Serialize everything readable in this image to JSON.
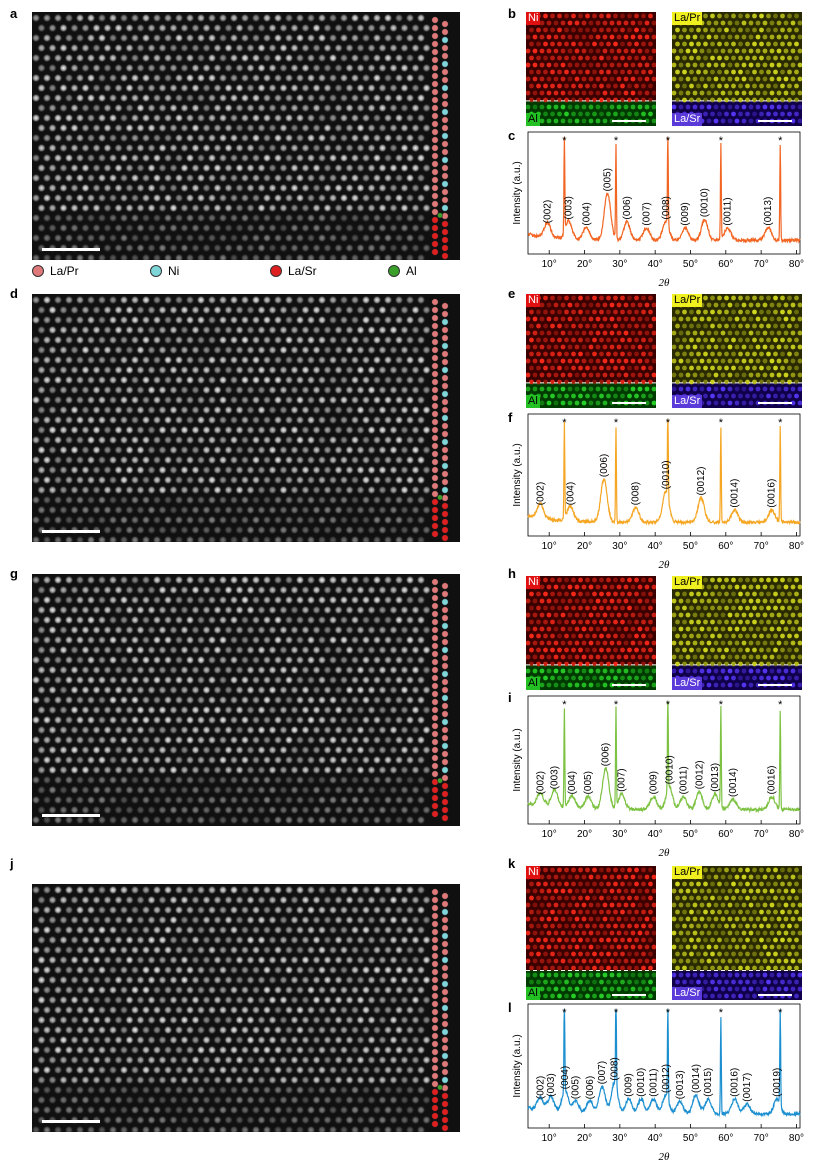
{
  "legend": {
    "items": [
      {
        "label": "La/Pr",
        "color": "#e07a7a"
      },
      {
        "label": "Ni",
        "color": "#7fd6d9"
      },
      {
        "label": "La/Sr",
        "color": "#e02020"
      },
      {
        "label": "Al",
        "color": "#3aa02a"
      }
    ]
  },
  "panels": [
    {
      "stem_label": "a",
      "eds_label": "b",
      "xrd_label": "c",
      "eds_left": {
        "top": "Ni",
        "bottom": "Al"
      },
      "eds_right": {
        "top": "La/Pr",
        "bottom": "La/Sr"
      }
    },
    {
      "stem_label": "d",
      "eds_label": "e",
      "xrd_label": "f",
      "eds_left": {
        "top": "Ni",
        "bottom": "Al"
      },
      "eds_right": {
        "top": "La/Pr",
        "bottom": "La/Sr"
      }
    },
    {
      "stem_label": "g",
      "eds_label": "h",
      "xrd_label": "i",
      "eds_left": {
        "top": "Ni",
        "bottom": "Al"
      },
      "eds_right": {
        "top": "La/Pr",
        "bottom": "La/Sr"
      }
    },
    {
      "stem_label": "j",
      "eds_label": "k",
      "xrd_label": "l",
      "eds_left": {
        "top": "Ni",
        "bottom": "Al"
      },
      "eds_right": {
        "top": "La/Pr",
        "bottom": "La/Sr"
      }
    }
  ],
  "chart_data": [
    {
      "type": "line",
      "panel": "c",
      "xlabel": "2θ",
      "ylabel": "Intensity (a.u.)",
      "xlim": [
        4,
        81
      ],
      "xticks": [
        "10°",
        "20°",
        "30°",
        "40°",
        "50°",
        "60°",
        "70°",
        "80°"
      ],
      "xtick_values": [
        10,
        20,
        30,
        40,
        50,
        60,
        70,
        80
      ],
      "color": "#f26522",
      "substrate_peaks": [
        14.3,
        28.9,
        43.6,
        58.6,
        75.4
      ],
      "peaks": [
        {
          "label": "(002)",
          "x": 9.5,
          "h": 0.12
        },
        {
          "label": "(003)",
          "x": 15.5,
          "h": 0.15
        },
        {
          "label": "(004)",
          "x": 20.5,
          "h": 0.1
        },
        {
          "label": "(005)",
          "x": 26.5,
          "h": 0.38
        },
        {
          "label": "(006)",
          "x": 32.0,
          "h": 0.15
        },
        {
          "label": "(007)",
          "x": 37.5,
          "h": 0.1
        },
        {
          "label": "(008)",
          "x": 43.0,
          "h": 0.15
        },
        {
          "label": "(009)",
          "x": 48.5,
          "h": 0.1
        },
        {
          "label": "(0010)",
          "x": 54.0,
          "h": 0.17
        },
        {
          "label": "(0011)",
          "x": 60.5,
          "h": 0.1
        },
        {
          "label": "(0013)",
          "x": 72.0,
          "h": 0.1
        }
      ]
    },
    {
      "type": "line",
      "panel": "f",
      "xlabel": "2θ",
      "ylabel": "Intensity (a.u.)",
      "xlim": [
        4,
        81
      ],
      "xticks": [
        "10°",
        "20°",
        "30°",
        "40°",
        "50°",
        "60°",
        "70°",
        "80°"
      ],
      "xtick_values": [
        10,
        20,
        30,
        40,
        50,
        60,
        70,
        80
      ],
      "color": "#f5a623",
      "substrate_peaks": [
        14.3,
        28.9,
        43.6,
        58.6,
        75.4
      ],
      "peaks": [
        {
          "label": "(002)",
          "x": 7.5,
          "h": 0.12
        },
        {
          "label": "(004)",
          "x": 16.0,
          "h": 0.12
        },
        {
          "label": "(006)",
          "x": 25.5,
          "h": 0.35
        },
        {
          "label": "(008)",
          "x": 34.5,
          "h": 0.12
        },
        {
          "label": "(0010)",
          "x": 43.0,
          "h": 0.25
        },
        {
          "label": "(0012)",
          "x": 53.0,
          "h": 0.2
        },
        {
          "label": "(0014)",
          "x": 62.5,
          "h": 0.1
        },
        {
          "label": "(0016)",
          "x": 73.0,
          "h": 0.1
        }
      ]
    },
    {
      "type": "line",
      "panel": "i",
      "xlabel": "2θ",
      "ylabel": "Intensity (a.u.)",
      "xlim": [
        4,
        81
      ],
      "xticks": [
        "10°",
        "20°",
        "30°",
        "40°",
        "50°",
        "60°",
        "70°",
        "80°"
      ],
      "xtick_values": [
        10,
        20,
        30,
        40,
        50,
        60,
        70,
        80
      ],
      "color": "#7dc242",
      "substrate_peaks": [
        14.3,
        28.9,
        43.6,
        58.6,
        75.4
      ],
      "peaks": [
        {
          "label": "(002)",
          "x": 7.5,
          "h": 0.1
        },
        {
          "label": "(003)",
          "x": 11.5,
          "h": 0.14
        },
        {
          "label": "(004)",
          "x": 16.5,
          "h": 0.1
        },
        {
          "label": "(005)",
          "x": 21.0,
          "h": 0.1
        },
        {
          "label": "(006)",
          "x": 26.0,
          "h": 0.32
        },
        {
          "label": "(007)",
          "x": 30.5,
          "h": 0.12
        },
        {
          "label": "(009)",
          "x": 39.5,
          "h": 0.1
        },
        {
          "label": "(0010)",
          "x": 44.0,
          "h": 0.18
        },
        {
          "label": "(0011)",
          "x": 48.0,
          "h": 0.1
        },
        {
          "label": "(0012)",
          "x": 52.5,
          "h": 0.14
        },
        {
          "label": "(0013)",
          "x": 57.0,
          "h": 0.12
        },
        {
          "label": "(0014)",
          "x": 62.0,
          "h": 0.08
        },
        {
          "label": "(0016)",
          "x": 73.0,
          "h": 0.1
        }
      ]
    },
    {
      "type": "line",
      "panel": "l",
      "xlabel": "2θ",
      "ylabel": "Intensity (a.u.)",
      "xlim": [
        4,
        81
      ],
      "xticks": [
        "10°",
        "20°",
        "30°",
        "40°",
        "50°",
        "60°",
        "70°",
        "80°"
      ],
      "xtick_values": [
        10,
        20,
        30,
        40,
        50,
        60,
        70,
        80
      ],
      "color": "#1b8fd0",
      "substrate_peaks": [
        14.3,
        28.9,
        43.6,
        58.6,
        75.4
      ],
      "peaks": [
        {
          "label": "(002)",
          "x": 7.5,
          "h": 0.1
        },
        {
          "label": "(003)",
          "x": 10.5,
          "h": 0.12
        },
        {
          "label": "(004)",
          "x": 14.5,
          "h": 0.18
        },
        {
          "label": "(005)",
          "x": 17.5,
          "h": 0.1
        },
        {
          "label": "(006)",
          "x": 21.5,
          "h": 0.1
        },
        {
          "label": "(007)",
          "x": 25.0,
          "h": 0.22
        },
        {
          "label": "(008)",
          "x": 28.5,
          "h": 0.25
        },
        {
          "label": "(009)",
          "x": 32.5,
          "h": 0.12
        },
        {
          "label": "(0010)",
          "x": 36.0,
          "h": 0.12
        },
        {
          "label": "(0011)",
          "x": 39.5,
          "h": 0.12
        },
        {
          "label": "(0012)",
          "x": 43.0,
          "h": 0.15
        },
        {
          "label": "(0013)",
          "x": 47.0,
          "h": 0.1
        },
        {
          "label": "(0014)",
          "x": 51.5,
          "h": 0.15
        },
        {
          "label": "(0015)",
          "x": 55.0,
          "h": 0.12
        },
        {
          "label": "(0016)",
          "x": 62.5,
          "h": 0.12
        },
        {
          "label": "(0017)",
          "x": 66.0,
          "h": 0.08
        },
        {
          "label": "(0019)",
          "x": 74.5,
          "h": 0.12
        }
      ]
    }
  ]
}
